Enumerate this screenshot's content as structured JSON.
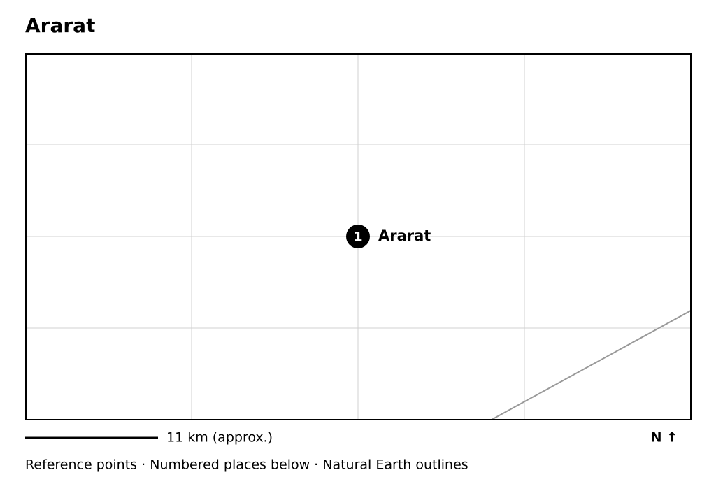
{
  "title": "Ararat",
  "places": [
    {
      "number": "1",
      "label": "Ararat"
    }
  ],
  "scale_label": "11 km (approx.)",
  "north_label": "N ↑",
  "footer": "Reference points · Numbered places below · Natural Earth outlines"
}
